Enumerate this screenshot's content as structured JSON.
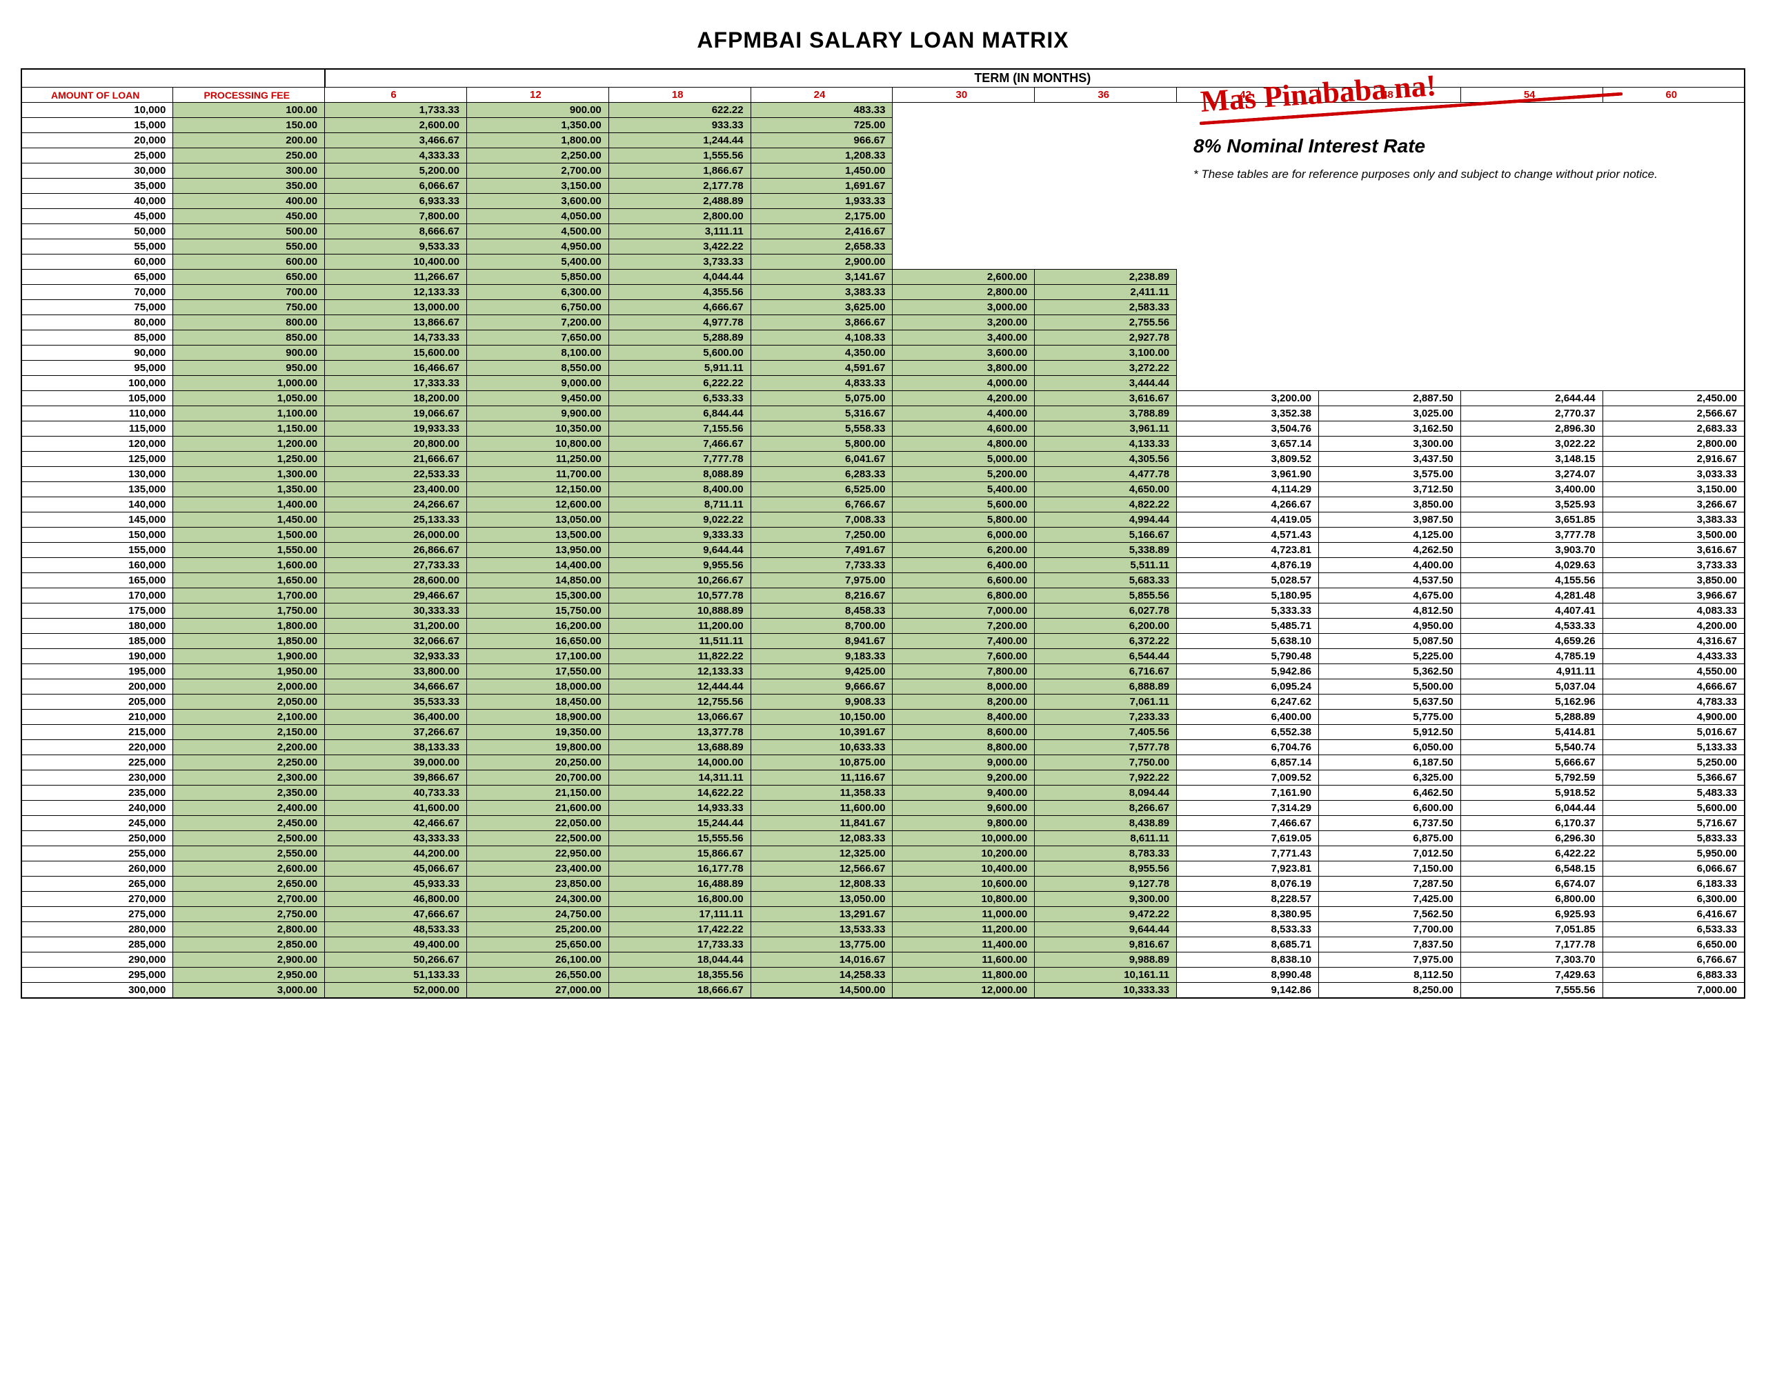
{
  "title": "AFPMBAI SALARY LOAN MATRIX",
  "term_header": "TERM (IN MONTHS)",
  "column_headers": {
    "amount": "AMOUNT OF LOAN",
    "fee": "PROCESSING FEE"
  },
  "term_months": [
    6,
    12,
    18,
    24,
    30,
    36,
    42,
    48,
    54,
    60
  ],
  "promo": {
    "headline": "Mas Pinababa na!",
    "rate": "8% Nominal Interest Rate",
    "note": "* These tables are for reference purposes only and subject to change without prior notice."
  },
  "colors": {
    "red": "#cc0000",
    "fee_bg": "#bcd3a4",
    "green_bg": "#bcd3a4",
    "border": "#000000",
    "bg": "#ffffff"
  },
  "green_column_ranges": {
    "6": [
      10000,
      300000
    ],
    "12": [
      10000,
      300000
    ],
    "18": [
      10000,
      300000
    ],
    "24": [
      10000,
      300000
    ],
    "30": [
      65000,
      300000
    ],
    "36": [
      65000,
      300000
    ],
    "42": [
      105000,
      300000
    ],
    "48": [
      105000,
      300000
    ],
    "54": [
      105000,
      300000
    ],
    "60": [
      105000,
      300000
    ]
  },
  "green_extra_cells": [
    [
      100000,
      30
    ],
    [
      100000,
      36
    ]
  ],
  "white_cells_inside_green": [],
  "rows": [
    {
      "amount": 10000,
      "fee": 100.0,
      "6": 1733.33,
      "12": 900.0,
      "18": 622.22,
      "24": 483.33
    },
    {
      "amount": 15000,
      "fee": 150.0,
      "6": 2600.0,
      "12": 1350.0,
      "18": 933.33,
      "24": 725.0
    },
    {
      "amount": 20000,
      "fee": 200.0,
      "6": 3466.67,
      "12": 1800.0,
      "18": 1244.44,
      "24": 966.67
    },
    {
      "amount": 25000,
      "fee": 250.0,
      "6": 4333.33,
      "12": 2250.0,
      "18": 1555.56,
      "24": 1208.33
    },
    {
      "amount": 30000,
      "fee": 300.0,
      "6": 5200.0,
      "12": 2700.0,
      "18": 1866.67,
      "24": 1450.0
    },
    {
      "amount": 35000,
      "fee": 350.0,
      "6": 6066.67,
      "12": 3150.0,
      "18": 2177.78,
      "24": 1691.67
    },
    {
      "amount": 40000,
      "fee": 400.0,
      "6": 6933.33,
      "12": 3600.0,
      "18": 2488.89,
      "24": 1933.33
    },
    {
      "amount": 45000,
      "fee": 450.0,
      "6": 7800.0,
      "12": 4050.0,
      "18": 2800.0,
      "24": 2175.0
    },
    {
      "amount": 50000,
      "fee": 500.0,
      "6": 8666.67,
      "12": 4500.0,
      "18": 3111.11,
      "24": 2416.67
    },
    {
      "amount": 55000,
      "fee": 550.0,
      "6": 9533.33,
      "12": 4950.0,
      "18": 3422.22,
      "24": 2658.33
    },
    {
      "amount": 60000,
      "fee": 600.0,
      "6": 10400.0,
      "12": 5400.0,
      "18": 3733.33,
      "24": 2900.0
    },
    {
      "amount": 65000,
      "fee": 650.0,
      "6": 11266.67,
      "12": 5850.0,
      "18": 4044.44,
      "24": 3141.67,
      "30": 2600.0,
      "36": 2238.89
    },
    {
      "amount": 70000,
      "fee": 700.0,
      "6": 12133.33,
      "12": 6300.0,
      "18": 4355.56,
      "24": 3383.33,
      "30": 2800.0,
      "36": 2411.11
    },
    {
      "amount": 75000,
      "fee": 750.0,
      "6": 13000.0,
      "12": 6750.0,
      "18": 4666.67,
      "24": 3625.0,
      "30": 3000.0,
      "36": 2583.33
    },
    {
      "amount": 80000,
      "fee": 800.0,
      "6": 13866.67,
      "12": 7200.0,
      "18": 4977.78,
      "24": 3866.67,
      "30": 3200.0,
      "36": 2755.56
    },
    {
      "amount": 85000,
      "fee": 850.0,
      "6": 14733.33,
      "12": 7650.0,
      "18": 5288.89,
      "24": 4108.33,
      "30": 3400.0,
      "36": 2927.78
    },
    {
      "amount": 90000,
      "fee": 900.0,
      "6": 15600.0,
      "12": 8100.0,
      "18": 5600.0,
      "24": 4350.0,
      "30": 3600.0,
      "36": 3100.0
    },
    {
      "amount": 95000,
      "fee": 950.0,
      "6": 16466.67,
      "12": 8550.0,
      "18": 5911.11,
      "24": 4591.67,
      "30": 3800.0,
      "36": 3272.22
    },
    {
      "amount": 100000,
      "fee": 1000.0,
      "6": 17333.33,
      "12": 9000.0,
      "18": 6222.22,
      "24": 4833.33,
      "30": 4000.0,
      "36": 3444.44
    },
    {
      "amount": 105000,
      "fee": 1050.0,
      "6": 18200.0,
      "12": 9450.0,
      "18": 6533.33,
      "24": 5075.0,
      "30": 4200.0,
      "36": 3616.67,
      "42": 3200.0,
      "48": 2887.5,
      "54": 2644.44,
      "60": 2450.0
    },
    {
      "amount": 110000,
      "fee": 1100.0,
      "6": 19066.67,
      "12": 9900.0,
      "18": 6844.44,
      "24": 5316.67,
      "30": 4400.0,
      "36": 3788.89,
      "42": 3352.38,
      "48": 3025.0,
      "54": 2770.37,
      "60": 2566.67
    },
    {
      "amount": 115000,
      "fee": 1150.0,
      "6": 19933.33,
      "12": 10350.0,
      "18": 7155.56,
      "24": 5558.33,
      "30": 4600.0,
      "36": 3961.11,
      "42": 3504.76,
      "48": 3162.5,
      "54": 2896.3,
      "60": 2683.33
    },
    {
      "amount": 120000,
      "fee": 1200.0,
      "6": 20800.0,
      "12": 10800.0,
      "18": 7466.67,
      "24": 5800.0,
      "30": 4800.0,
      "36": 4133.33,
      "42": 3657.14,
      "48": 3300.0,
      "54": 3022.22,
      "60": 2800.0
    },
    {
      "amount": 125000,
      "fee": 1250.0,
      "6": 21666.67,
      "12": 11250.0,
      "18": 7777.78,
      "24": 6041.67,
      "30": 5000.0,
      "36": 4305.56,
      "42": 3809.52,
      "48": 3437.5,
      "54": 3148.15,
      "60": 2916.67
    },
    {
      "amount": 130000,
      "fee": 1300.0,
      "6": 22533.33,
      "12": 11700.0,
      "18": 8088.89,
      "24": 6283.33,
      "30": 5200.0,
      "36": 4477.78,
      "42": 3961.9,
      "48": 3575.0,
      "54": 3274.07,
      "60": 3033.33
    },
    {
      "amount": 135000,
      "fee": 1350.0,
      "6": 23400.0,
      "12": 12150.0,
      "18": 8400.0,
      "24": 6525.0,
      "30": 5400.0,
      "36": 4650.0,
      "42": 4114.29,
      "48": 3712.5,
      "54": 3400.0,
      "60": 3150.0
    },
    {
      "amount": 140000,
      "fee": 1400.0,
      "6": 24266.67,
      "12": 12600.0,
      "18": 8711.11,
      "24": 6766.67,
      "30": 5600.0,
      "36": 4822.22,
      "42": 4266.67,
      "48": 3850.0,
      "54": 3525.93,
      "60": 3266.67
    },
    {
      "amount": 145000,
      "fee": 1450.0,
      "6": 25133.33,
      "12": 13050.0,
      "18": 9022.22,
      "24": 7008.33,
      "30": 5800.0,
      "36": 4994.44,
      "42": 4419.05,
      "48": 3987.5,
      "54": 3651.85,
      "60": 3383.33
    },
    {
      "amount": 150000,
      "fee": 1500.0,
      "6": 26000.0,
      "12": 13500.0,
      "18": 9333.33,
      "24": 7250.0,
      "30": 6000.0,
      "36": 5166.67,
      "42": 4571.43,
      "48": 4125.0,
      "54": 3777.78,
      "60": 3500.0
    },
    {
      "amount": 155000,
      "fee": 1550.0,
      "6": 26866.67,
      "12": 13950.0,
      "18": 9644.44,
      "24": 7491.67,
      "30": 6200.0,
      "36": 5338.89,
      "42": 4723.81,
      "48": 4262.5,
      "54": 3903.7,
      "60": 3616.67
    },
    {
      "amount": 160000,
      "fee": 1600.0,
      "6": 27733.33,
      "12": 14400.0,
      "18": 9955.56,
      "24": 7733.33,
      "30": 6400.0,
      "36": 5511.11,
      "42": 4876.19,
      "48": 4400.0,
      "54": 4029.63,
      "60": 3733.33
    },
    {
      "amount": 165000,
      "fee": 1650.0,
      "6": 28600.0,
      "12": 14850.0,
      "18": 10266.67,
      "24": 7975.0,
      "30": 6600.0,
      "36": 5683.33,
      "42": 5028.57,
      "48": 4537.5,
      "54": 4155.56,
      "60": 3850.0
    },
    {
      "amount": 170000,
      "fee": 1700.0,
      "6": 29466.67,
      "12": 15300.0,
      "18": 10577.78,
      "24": 8216.67,
      "30": 6800.0,
      "36": 5855.56,
      "42": 5180.95,
      "48": 4675.0,
      "54": 4281.48,
      "60": 3966.67
    },
    {
      "amount": 175000,
      "fee": 1750.0,
      "6": 30333.33,
      "12": 15750.0,
      "18": 10888.89,
      "24": 8458.33,
      "30": 7000.0,
      "36": 6027.78,
      "42": 5333.33,
      "48": 4812.5,
      "54": 4407.41,
      "60": 4083.33
    },
    {
      "amount": 180000,
      "fee": 1800.0,
      "6": 31200.0,
      "12": 16200.0,
      "18": 11200.0,
      "24": 8700.0,
      "30": 7200.0,
      "36": 6200.0,
      "42": 5485.71,
      "48": 4950.0,
      "54": 4533.33,
      "60": 4200.0
    },
    {
      "amount": 185000,
      "fee": 1850.0,
      "6": 32066.67,
      "12": 16650.0,
      "18": 11511.11,
      "24": 8941.67,
      "30": 7400.0,
      "36": 6372.22,
      "42": 5638.1,
      "48": 5087.5,
      "54": 4659.26,
      "60": 4316.67
    },
    {
      "amount": 190000,
      "fee": 1900.0,
      "6": 32933.33,
      "12": 17100.0,
      "18": 11822.22,
      "24": 9183.33,
      "30": 7600.0,
      "36": 6544.44,
      "42": 5790.48,
      "48": 5225.0,
      "54": 4785.19,
      "60": 4433.33
    },
    {
      "amount": 195000,
      "fee": 1950.0,
      "6": 33800.0,
      "12": 17550.0,
      "18": 12133.33,
      "24": 9425.0,
      "30": 7800.0,
      "36": 6716.67,
      "42": 5942.86,
      "48": 5362.5,
      "54": 4911.11,
      "60": 4550.0
    },
    {
      "amount": 200000,
      "fee": 2000.0,
      "6": 34666.67,
      "12": 18000.0,
      "18": 12444.44,
      "24": 9666.67,
      "30": 8000.0,
      "36": 6888.89,
      "42": 6095.24,
      "48": 5500.0,
      "54": 5037.04,
      "60": 4666.67
    },
    {
      "amount": 205000,
      "fee": 2050.0,
      "6": 35533.33,
      "12": 18450.0,
      "18": 12755.56,
      "24": 9908.33,
      "30": 8200.0,
      "36": 7061.11,
      "42": 6247.62,
      "48": 5637.5,
      "54": 5162.96,
      "60": 4783.33
    },
    {
      "amount": 210000,
      "fee": 2100.0,
      "6": 36400.0,
      "12": 18900.0,
      "18": 13066.67,
      "24": 10150.0,
      "30": 8400.0,
      "36": 7233.33,
      "42": 6400.0,
      "48": 5775.0,
      "54": 5288.89,
      "60": 4900.0
    },
    {
      "amount": 215000,
      "fee": 2150.0,
      "6": 37266.67,
      "12": 19350.0,
      "18": 13377.78,
      "24": 10391.67,
      "30": 8600.0,
      "36": 7405.56,
      "42": 6552.38,
      "48": 5912.5,
      "54": 5414.81,
      "60": 5016.67
    },
    {
      "amount": 220000,
      "fee": 2200.0,
      "6": 38133.33,
      "12": 19800.0,
      "18": 13688.89,
      "24": 10633.33,
      "30": 8800.0,
      "36": 7577.78,
      "42": 6704.76,
      "48": 6050.0,
      "54": 5540.74,
      "60": 5133.33
    },
    {
      "amount": 225000,
      "fee": 2250.0,
      "6": 39000.0,
      "12": 20250.0,
      "18": 14000.0,
      "24": 10875.0,
      "30": 9000.0,
      "36": 7750.0,
      "42": 6857.14,
      "48": 6187.5,
      "54": 5666.67,
      "60": 5250.0
    },
    {
      "amount": 230000,
      "fee": 2300.0,
      "6": 39866.67,
      "12": 20700.0,
      "18": 14311.11,
      "24": 11116.67,
      "30": 9200.0,
      "36": 7922.22,
      "42": 7009.52,
      "48": 6325.0,
      "54": 5792.59,
      "60": 5366.67
    },
    {
      "amount": 235000,
      "fee": 2350.0,
      "6": 40733.33,
      "12": 21150.0,
      "18": 14622.22,
      "24": 11358.33,
      "30": 9400.0,
      "36": 8094.44,
      "42": 7161.9,
      "48": 6462.5,
      "54": 5918.52,
      "60": 5483.33
    },
    {
      "amount": 240000,
      "fee": 2400.0,
      "6": 41600.0,
      "12": 21600.0,
      "18": 14933.33,
      "24": 11600.0,
      "30": 9600.0,
      "36": 8266.67,
      "42": 7314.29,
      "48": 6600.0,
      "54": 6044.44,
      "60": 5600.0
    },
    {
      "amount": 245000,
      "fee": 2450.0,
      "6": 42466.67,
      "12": 22050.0,
      "18": 15244.44,
      "24": 11841.67,
      "30": 9800.0,
      "36": 8438.89,
      "42": 7466.67,
      "48": 6737.5,
      "54": 6170.37,
      "60": 5716.67
    },
    {
      "amount": 250000,
      "fee": 2500.0,
      "6": 43333.33,
      "12": 22500.0,
      "18": 15555.56,
      "24": 12083.33,
      "30": 10000.0,
      "36": 8611.11,
      "42": 7619.05,
      "48": 6875.0,
      "54": 6296.3,
      "60": 5833.33
    },
    {
      "amount": 255000,
      "fee": 2550.0,
      "6": 44200.0,
      "12": 22950.0,
      "18": 15866.67,
      "24": 12325.0,
      "30": 10200.0,
      "36": 8783.33,
      "42": 7771.43,
      "48": 7012.5,
      "54": 6422.22,
      "60": 5950.0
    },
    {
      "amount": 260000,
      "fee": 2600.0,
      "6": 45066.67,
      "12": 23400.0,
      "18": 16177.78,
      "24": 12566.67,
      "30": 10400.0,
      "36": 8955.56,
      "42": 7923.81,
      "48": 7150.0,
      "54": 6548.15,
      "60": 6066.67
    },
    {
      "amount": 265000,
      "fee": 2650.0,
      "6": 45933.33,
      "12": 23850.0,
      "18": 16488.89,
      "24": 12808.33,
      "30": 10600.0,
      "36": 9127.78,
      "42": 8076.19,
      "48": 7287.5,
      "54": 6674.07,
      "60": 6183.33
    },
    {
      "amount": 270000,
      "fee": 2700.0,
      "6": 46800.0,
      "12": 24300.0,
      "18": 16800.0,
      "24": 13050.0,
      "30": 10800.0,
      "36": 9300.0,
      "42": 8228.57,
      "48": 7425.0,
      "54": 6800.0,
      "60": 6300.0
    },
    {
      "amount": 275000,
      "fee": 2750.0,
      "6": 47666.67,
      "12": 24750.0,
      "18": 17111.11,
      "24": 13291.67,
      "30": 11000.0,
      "36": 9472.22,
      "42": 8380.95,
      "48": 7562.5,
      "54": 6925.93,
      "60": 6416.67
    },
    {
      "amount": 280000,
      "fee": 2800.0,
      "6": 48533.33,
      "12": 25200.0,
      "18": 17422.22,
      "24": 13533.33,
      "30": 11200.0,
      "36": 9644.44,
      "42": 8533.33,
      "48": 7700.0,
      "54": 7051.85,
      "60": 6533.33
    },
    {
      "amount": 285000,
      "fee": 2850.0,
      "6": 49400.0,
      "12": 25650.0,
      "18": 17733.33,
      "24": 13775.0,
      "30": 11400.0,
      "36": 9816.67,
      "42": 8685.71,
      "48": 7837.5,
      "54": 7177.78,
      "60": 6650.0
    },
    {
      "amount": 290000,
      "fee": 2900.0,
      "6": 50266.67,
      "12": 26100.0,
      "18": 18044.44,
      "24": 14016.67,
      "30": 11600.0,
      "36": 9988.89,
      "42": 8838.1,
      "48": 7975.0,
      "54": 7303.7,
      "60": 6766.67
    },
    {
      "amount": 295000,
      "fee": 2950.0,
      "6": 51133.33,
      "12": 26550.0,
      "18": 18355.56,
      "24": 14258.33,
      "30": 11800.0,
      "36": 10161.11,
      "42": 8990.48,
      "48": 8112.5,
      "54": 7429.63,
      "60": 6883.33
    },
    {
      "amount": 300000,
      "fee": 3000.0,
      "6": 52000.0,
      "12": 27000.0,
      "18": 18666.67,
      "24": 14500.0,
      "30": 12000.0,
      "36": 10333.33,
      "42": 9142.86,
      "48": 8250.0,
      "54": 7555.56,
      "60": 7000.0
    }
  ]
}
